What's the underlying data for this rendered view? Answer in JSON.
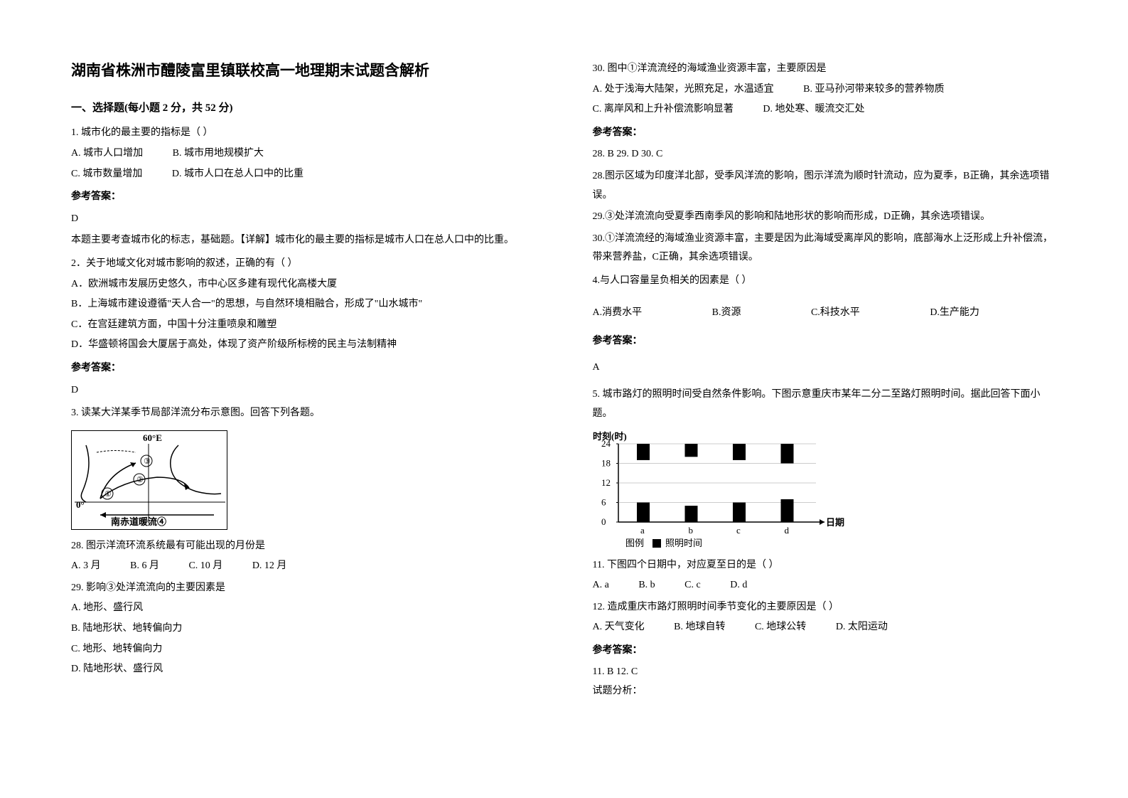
{
  "title": "湖南省株洲市醴陵富里镇联校高一地理期末试题含解析",
  "section1": "一、选择题(每小题 2 分，共 52 分)",
  "q1": {
    "stem": "1. 城市化的最主要的指标是（     ）",
    "opts": {
      "a": "A.  城市人口增加",
      "b": "B.  城市用地规模扩大",
      "c": "C.  城市数量增加",
      "d": "D.  城市人口在总人口中的比重"
    },
    "ans_label": "参考答案：",
    "ans": "D",
    "explain": "本题主要考查城市化的标志，基础题。【详解】城市化的最主要的指标是城市人口在总人口中的比重。"
  },
  "q2": {
    "stem": "2．关于地域文化对城市影响的叙述，正确的有（            ）",
    "opts": {
      "a": "A．欧洲城市发展历史悠久，市中心区多建有现代化高楼大厦",
      "b": "B．上海城市建设遵循\"天人合一\"的思想，与自然环境相融合，形成了\"山水城市\"",
      "c": "C．在宫廷建筑方面，中国十分注重喷泉和雕塑",
      "d": "D．华盛顿将国会大厦居于高处，体现了资产阶级所标榜的民主与法制精神"
    },
    "ans_label": "参考答案：",
    "ans": "D"
  },
  "q3": {
    "intro": "3. 读某大洋某季节局部洋流分布示意图。回答下列各题。",
    "map": {
      "lon_label": "60°E",
      "lat_label": "0°",
      "marks": [
        "①",
        "②",
        "③"
      ],
      "current": "南赤道暖流④"
    },
    "q28": {
      "stem": "28.  图示洋流环流系统最有可能出现的月份是",
      "opts": {
        "a": "A.  3 月",
        "b": "B.  6 月",
        "c": "C.  10 月",
        "d": "D.  12 月"
      }
    },
    "q29": {
      "stem": "29.  影响③处洋流流向的主要因素是",
      "opts": {
        "a": "A.  地形、盛行风",
        "b": "B.  陆地形状、地转偏向力",
        "c": "C.  地形、地转偏向力",
        "d": "D.  陆地形状、盛行风"
      }
    },
    "q30": {
      "stem": "30.  图中①洋流流经的海域渔业资源丰富，主要原因是",
      "opts": {
        "a": "A.  处于浅海大陆架，光照充足，水温适宜",
        "b": "B.  亚马孙河带来较多的营养物质",
        "c": "C.  离岸风和上升补偿流影响显著",
        "d": "D.  地处寒、暖流交汇处"
      }
    },
    "ans_label": "参考答案：",
    "ans_line": "28.  B        29.  D        30.  C",
    "e28": "28.图示区域为印度洋北部，受季风洋流的影响，图示洋流为顺时针流动，应为夏季，B正确，其余选项错误。",
    "e29": "29.③处洋流流向受夏季西南季风的影响和陆地形状的影响而形成，D正确，其余选项错误。",
    "e30": "30.①洋流流经的海域渔业资源丰富，主要是因为此海域受离岸风的影响，底部海水上泛形成上升补偿流，带来营养盐，C正确，其余选项错误。"
  },
  "q4": {
    "stem": "4.与人口容量呈负相关的因素是（         ）",
    "opts": {
      "a": "A.消费水平",
      "b": "B.资源",
      "c": "C.科技水平",
      "d": "D.生产能力"
    },
    "ans_label": "参考答案：",
    "ans": "A"
  },
  "q5": {
    "intro": "5. 城市路灯的照明时间受自然条件影响。下图示意重庆市某年二分二至路灯照明时间。据此回答下面小题。",
    "chart": {
      "y_label": "时刻(时)",
      "y_ticks": [
        "24",
        "18",
        "12",
        "6",
        "0"
      ],
      "x_ticks": [
        "a",
        "b",
        "c",
        "d"
      ],
      "x_label": "日期",
      "legend": "图例 ■ 照明时间",
      "bars": [
        {
          "x": "a",
          "segs": [
            [
              0,
              6
            ],
            [
              19,
              24
            ]
          ]
        },
        {
          "x": "b",
          "segs": [
            [
              0,
              5
            ],
            [
              20,
              24
            ]
          ]
        },
        {
          "x": "c",
          "segs": [
            [
              0,
              6
            ],
            [
              19,
              24
            ]
          ]
        },
        {
          "x": "d",
          "segs": [
            [
              0,
              7
            ],
            [
              18,
              24
            ]
          ]
        }
      ],
      "colors": {
        "bar": "#000000",
        "axis": "#000000",
        "bg": "#ffffff"
      }
    },
    "q11": {
      "stem": "11.  下图四个日期中，对应夏至日的是（    ）",
      "opts": {
        "a": "A.  a",
        "b": "B.  b",
        "c": "C.  c",
        "d": "D.  d"
      }
    },
    "q12": {
      "stem": "12.  造成重庆市路灯照明时间季节变化的主要原因是（    ）",
      "opts": {
        "a": "A.  天气变化",
        "b": "B.  地球自转",
        "c": "C.  地球公转",
        "d": "D.  太阳运动"
      }
    },
    "ans_label": "参考答案：",
    "ans_line": "11.  B       12.  C",
    "tail": "试题分析："
  }
}
